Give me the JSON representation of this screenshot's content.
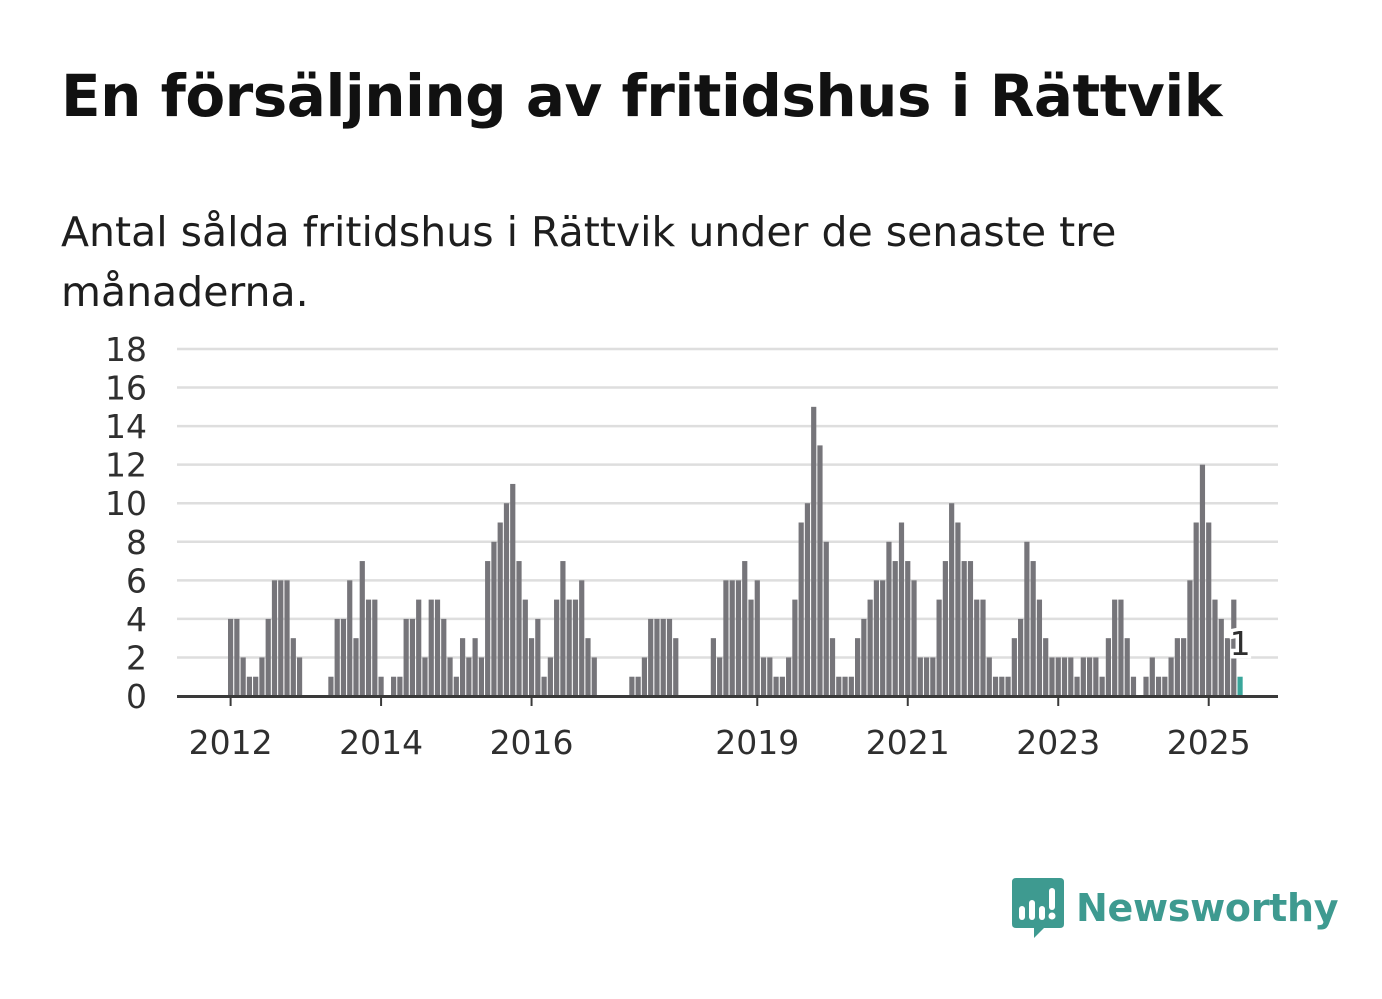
{
  "title": "En försäljning av fritidshus i Rättvik",
  "subtitle": "Antal sålda fritidshus i Rättvik under de senaste tre månaderna.",
  "brand": {
    "name": "Newsworthy",
    "color": "#3e9a90",
    "icon": "newsworthy-chart-icon"
  },
  "colors": {
    "bar": "#76757a",
    "highlight": "#3aa69b",
    "grid": "#dedede",
    "axis": "#3a3a3a"
  },
  "chart_data": {
    "type": "bar",
    "title": "",
    "xlabel": "",
    "ylabel": "",
    "ylim": [
      0,
      18
    ],
    "yticks": [
      "0",
      "2",
      "4",
      "6",
      "8",
      "10",
      "12",
      "14",
      "16",
      "18"
    ],
    "xticks": [
      "2012",
      "2014",
      "2016",
      "2019",
      "2021",
      "2023",
      "2025"
    ],
    "grid": true,
    "start": "2011-04",
    "frequency": "monthly",
    "values": [
      0,
      0,
      0,
      0,
      0,
      0,
      0,
      0,
      0,
      4,
      4,
      2,
      1,
      1,
      2,
      4,
      6,
      6,
      6,
      3,
      2,
      0,
      0,
      0,
      0,
      1,
      4,
      4,
      6,
      3,
      7,
      5,
      5,
      1,
      0,
      1,
      1,
      4,
      4,
      5,
      2,
      5,
      5,
      4,
      2,
      1,
      3,
      2,
      3,
      2,
      7,
      8,
      9,
      10,
      11,
      7,
      5,
      3,
      4,
      1,
      2,
      5,
      7,
      5,
      5,
      6,
      3,
      2,
      0,
      0,
      0,
      0,
      0,
      1,
      1,
      2,
      4,
      4,
      4,
      4,
      3,
      0,
      0,
      0,
      0,
      0,
      3,
      2,
      6,
      6,
      6,
      7,
      5,
      6,
      2,
      2,
      1,
      1,
      2,
      5,
      9,
      10,
      15,
      13,
      8,
      3,
      1,
      1,
      1,
      3,
      4,
      5,
      6,
      6,
      8,
      7,
      9,
      7,
      6,
      2,
      2,
      2,
      5,
      7,
      10,
      9,
      7,
      7,
      5,
      5,
      2,
      1,
      1,
      1,
      3,
      4,
      8,
      7,
      5,
      3,
      2,
      2,
      2,
      2,
      1,
      2,
      2,
      2,
      1,
      3,
      5,
      5,
      3,
      1,
      0,
      1,
      2,
      1,
      1,
      2,
      3,
      3,
      6,
      9,
      12,
      9,
      5,
      4,
      3,
      5,
      1
    ],
    "highlight": {
      "value": 1,
      "label": "1"
    }
  }
}
